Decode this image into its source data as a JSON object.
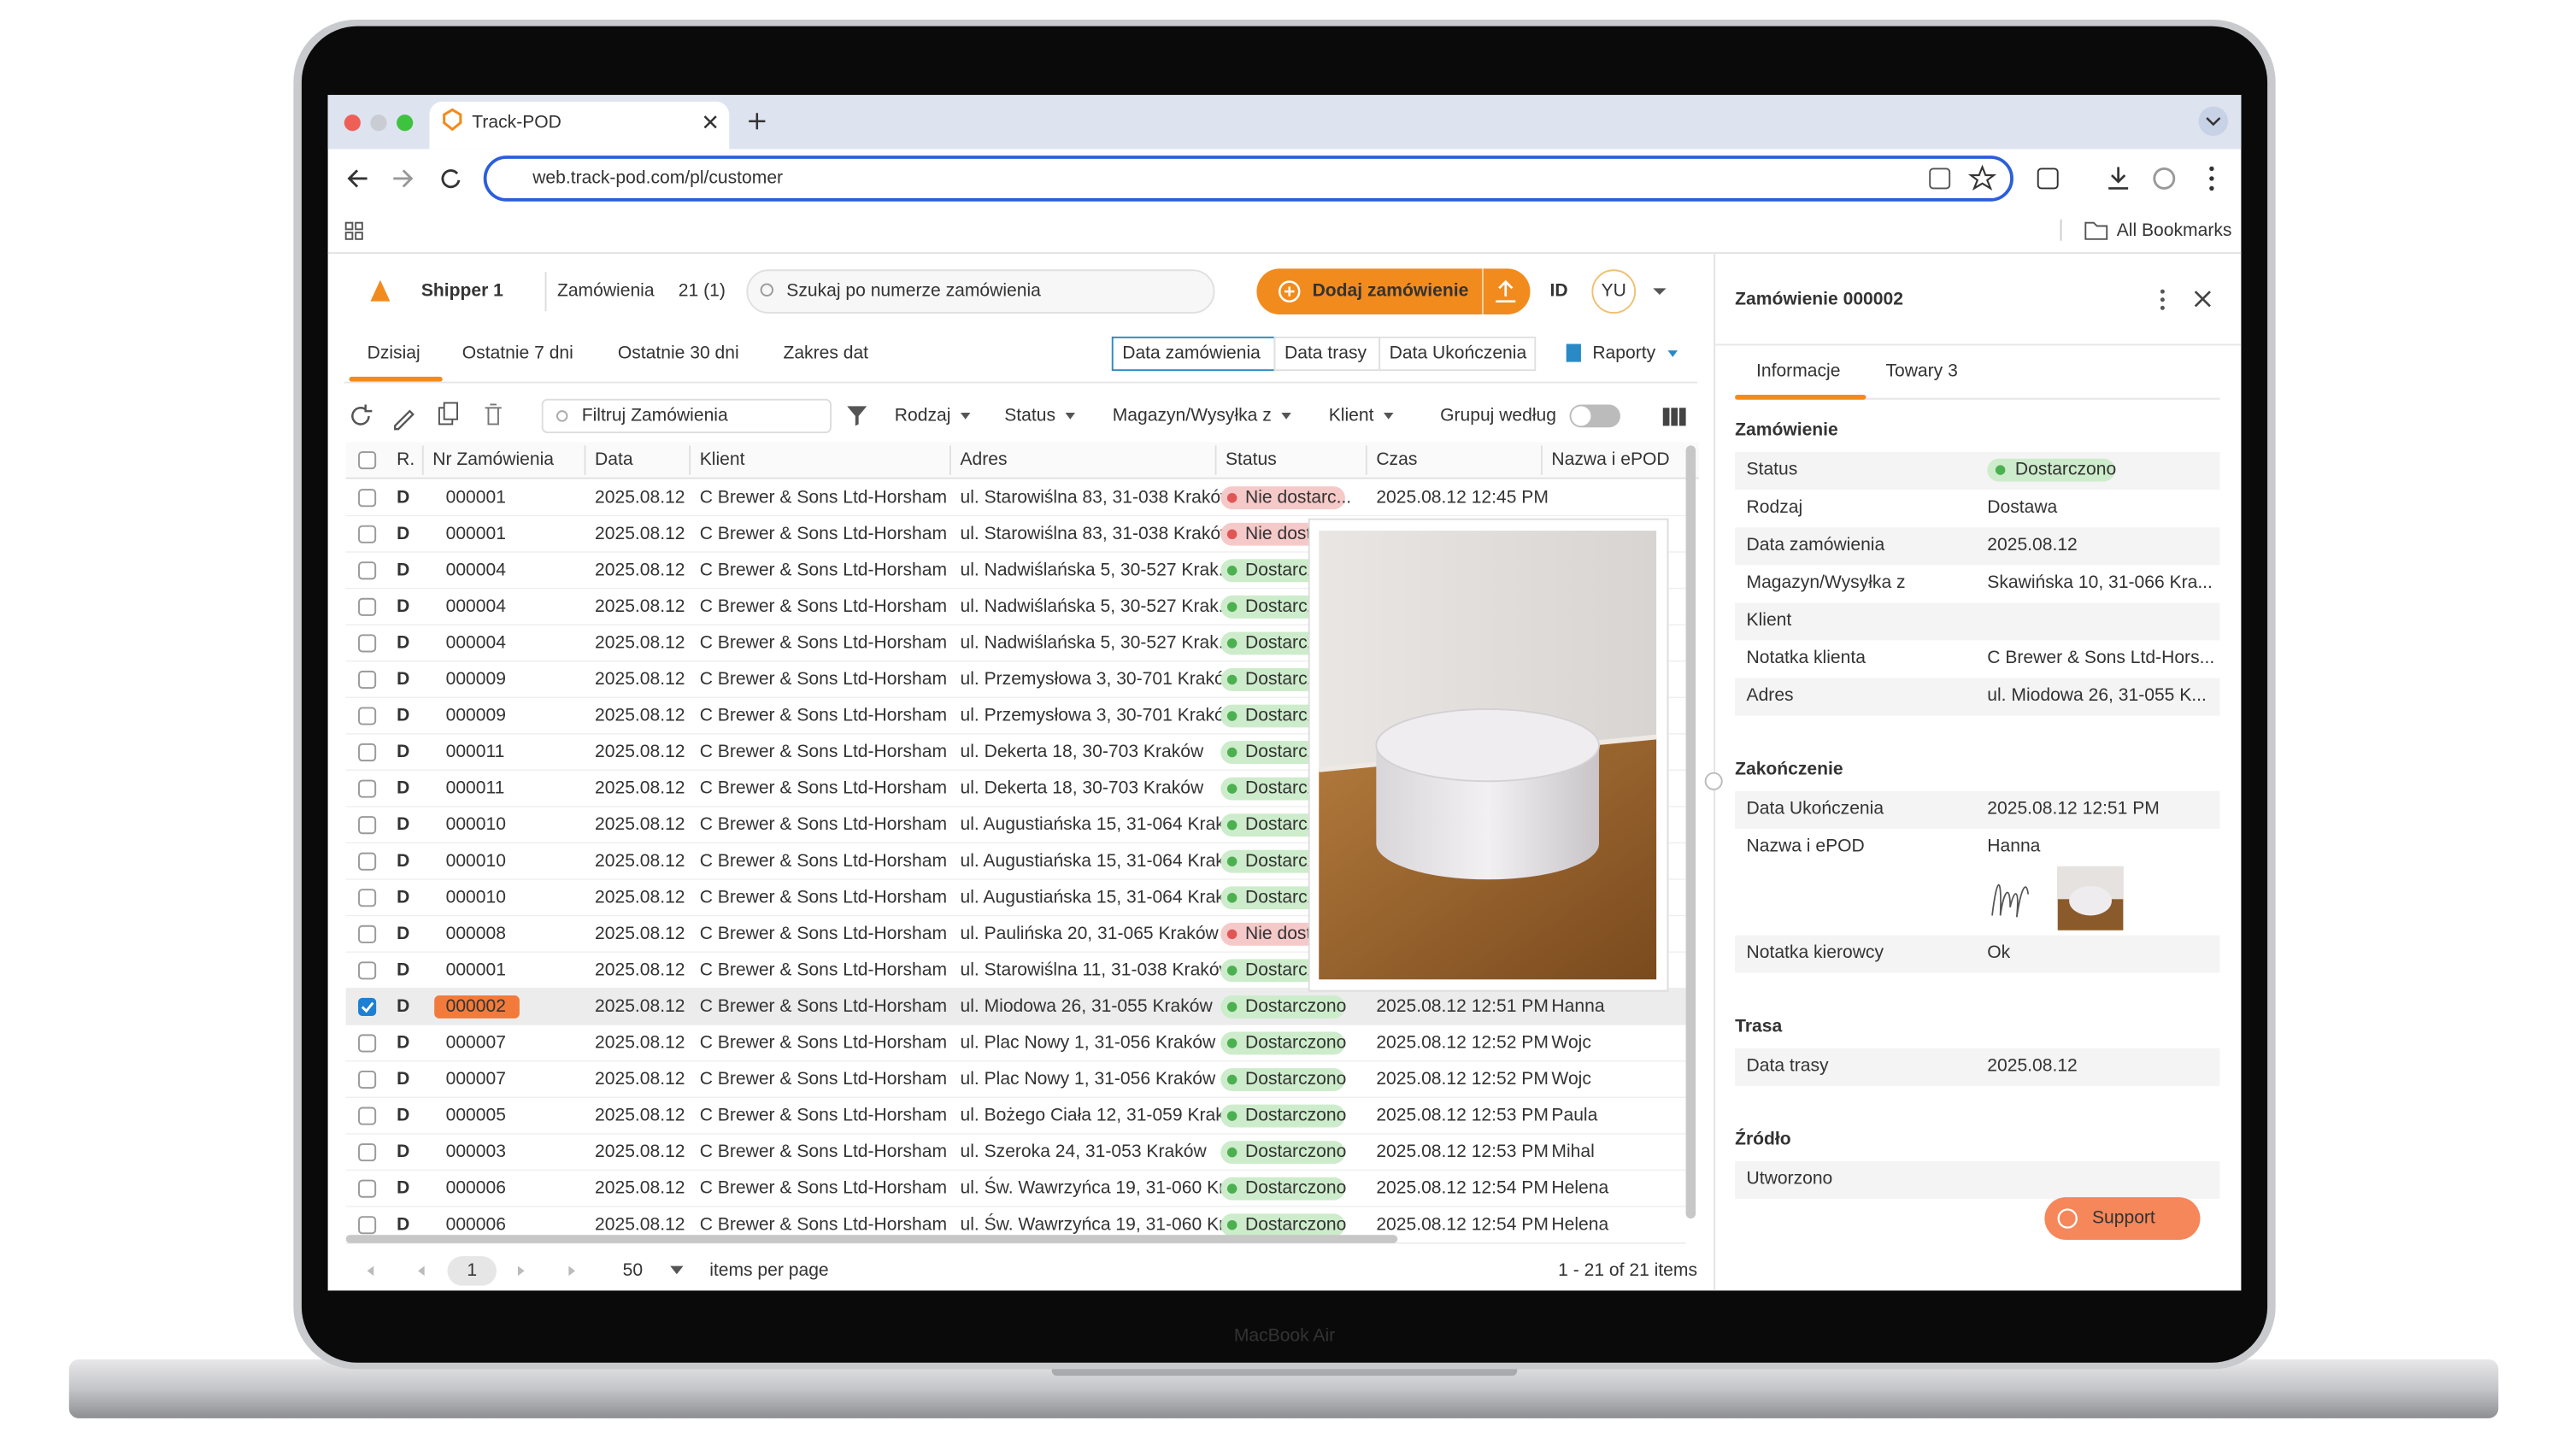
{
  "browser": {
    "tab_title": "Track-POD",
    "url": "web.track-pod.com/pl/customer",
    "bookmarks": "All Bookmarks"
  },
  "header": {
    "company": "Shipper 1",
    "orders_label": "Zamówienia",
    "orders_count": "21 (1)",
    "search_placeholder": "Szukaj po numerze zamówienia",
    "add_button": "Dodaj zamówienie",
    "id_label": "ID",
    "avatar": "YU"
  },
  "date_tabs": [
    "Dzisiaj",
    "Ostatnie 7 dni",
    "Ostatnie 30 dni",
    "Zakres dat"
  ],
  "date_types": [
    "Data zamówienia",
    "Data trasy",
    "Data Ukończenia"
  ],
  "reports": "Raporty",
  "toolbar": {
    "filter_placeholder": "Filtruj Zamówienia",
    "filters": [
      "Rodzaj",
      "Status",
      "Magazyn/Wysyłka z",
      "Klient"
    ],
    "group_by": "Grupuj według"
  },
  "table": {
    "columns": [
      "R.",
      "Nr Zamówienia",
      "Data",
      "Klient",
      "Adres",
      "Status",
      "Czas",
      "Nazwa i ePOD"
    ],
    "rows": [
      [
        "D",
        "000001",
        "2025.08.12",
        "C Brewer & Sons Ltd-Horsham",
        "ul. Starowiślna 83, 31-038 Kraków",
        "Nie dostarc...",
        "2025.08.12 12:45 PM",
        null
      ],
      [
        "D",
        "000001",
        "2025.08.12",
        "C Brewer & Sons Ltd-Horsham",
        "ul. Starowiślna 83, 31-038 Kraków",
        "Nie dostarczono",
        null,
        null
      ],
      [
        "D",
        "000004",
        "2025.08.12",
        "C Brewer & Sons Ltd-Horsham",
        "ul. Nadwiślańska 5, 30-527 Krak...",
        "Dostarczono",
        null,
        null
      ],
      [
        "D",
        "000004",
        "2025.08.12",
        "C Brewer & Sons Ltd-Horsham",
        "ul. Nadwiślańska 5, 30-527 Krak...",
        "Dostarczono",
        null,
        null
      ],
      [
        "D",
        "000004",
        "2025.08.12",
        "C Brewer & Sons Ltd-Horsham",
        "ul. Nadwiślańska 5, 30-527 Krak...",
        "Dostarczono",
        null,
        null
      ],
      [
        "D",
        "000009",
        "2025.08.12",
        "C Brewer & Sons Ltd-Horsham",
        "ul. Przemysłowa 3, 30-701 Kraków",
        "Dostarczono",
        null,
        null
      ],
      [
        "D",
        "000009",
        "2025.08.12",
        "C Brewer & Sons Ltd-Horsham",
        "ul. Przemysłowa 3, 30-701 Kraków",
        "Dostarczono",
        null,
        null
      ],
      [
        "D",
        "000011",
        "2025.08.12",
        "C Brewer & Sons Ltd-Horsham",
        "ul. Dekerta 18, 30-703 Kraków",
        "Dostarczono",
        null,
        null
      ],
      [
        "D",
        "000011",
        "2025.08.12",
        "C Brewer & Sons Ltd-Horsham",
        "ul. Dekerta 18, 30-703 Kraków",
        "Dostarczono",
        null,
        null
      ],
      [
        "D",
        "000010",
        "2025.08.12",
        "C Brewer & Sons Ltd-Horsham",
        "ul. Augustiańska 15, 31-064 Krak...",
        "Dostarczono",
        null,
        null
      ],
      [
        "D",
        "000010",
        "2025.08.12",
        "C Brewer & Sons Ltd-Horsham",
        "ul. Augustiańska 15, 31-064 Krak...",
        "Dostarczono",
        null,
        null
      ],
      [
        "D",
        "000010",
        "2025.08.12",
        "C Brewer & Sons Ltd-Horsham",
        "ul. Augustiańska 15, 31-064 Krak...",
        "Dostarczono",
        null,
        null
      ],
      [
        "D",
        "000008",
        "2025.08.12",
        "C Brewer & Sons Ltd-Horsham",
        "ul. Paulińska 20, 31-065 Kraków",
        "Nie dostarczono",
        null,
        null
      ],
      [
        "D",
        "000001",
        "2025.08.12",
        "C Brewer & Sons Ltd-Horsham",
        "ul. Starowiślna 11, 31-038 Kraków",
        "Dostarczono",
        null,
        null
      ],
      [
        "D",
        "000002",
        "2025.08.12",
        "C Brewer & Sons Ltd-Horsham",
        "ul. Miodowa 26, 31-055 Kraków",
        "Dostarczono",
        "2025.08.12 12:51 PM",
        "Hanna"
      ],
      [
        "D",
        "000007",
        "2025.08.12",
        "C Brewer & Sons Ltd-Horsham",
        "ul. Plac Nowy 1, 31-056 Kraków",
        "Dostarczono",
        "2025.08.12 12:52 PM",
        "Wojc"
      ],
      [
        "D",
        "000007",
        "2025.08.12",
        "C Brewer & Sons Ltd-Horsham",
        "ul. Plac Nowy 1, 31-056 Kraków",
        "Dostarczono",
        "2025.08.12 12:52 PM",
        "Wojc"
      ],
      [
        "D",
        "000005",
        "2025.08.12",
        "C Brewer & Sons Ltd-Horsham",
        "ul. Bożego Ciała 12, 31-059 Krak...",
        "Dostarczono",
        "2025.08.12 12:53 PM",
        "Paula"
      ],
      [
        "D",
        "000003",
        "2025.08.12",
        "C Brewer & Sons Ltd-Horsham",
        "ul. Szeroka 24, 31-053 Kraków",
        "Dostarczono",
        "2025.08.12 12:53 PM",
        "Mihal"
      ],
      [
        "D",
        "000006",
        "2025.08.12",
        "C Brewer & Sons Ltd-Horsham",
        "ul. Św. Wawrzyńca 19, 31-060 Kr...",
        "Dostarczono",
        "2025.08.12 12:54 PM",
        "Helena"
      ],
      [
        "D",
        "000006",
        "2025.08.12",
        "C Brewer & Sons Ltd-Horsham",
        "ul. Św. Wawrzyńca 19, 31-060 Kr...",
        "Dostarczono",
        "2025.08.12 12:54 PM",
        "Helena"
      ]
    ]
  },
  "pager": {
    "page": "1",
    "per_page": "50",
    "per_page_label": "items per page",
    "range": "1 - 21 of 21 items"
  },
  "panel": {
    "title": "Zamówienie 000002",
    "tabs": [
      "Informacje",
      "Towary 3"
    ],
    "sections": [
      {
        "title": "Zamówienie",
        "rows": [
          [
            "Status",
            "Dostarczono"
          ],
          [
            "Rodzaj",
            "Dostawa"
          ],
          [
            "Data zamówienia",
            "2025.08.12"
          ],
          [
            "Magazyn/Wysyłka z",
            "Skawińska 10, 31-066 Kra..."
          ],
          [
            "Klient",
            null
          ],
          [
            "Notatka klienta",
            "C Brewer & Sons Ltd-Hors..."
          ],
          [
            "Adres",
            "ul. Miodowa 26, 31-055 K..."
          ]
        ]
      },
      {
        "title": "Zakończenie",
        "rows": [
          [
            "Data Ukończenia",
            "2025.08.12 12:51 PM"
          ],
          [
            "Nazwa i ePOD",
            "Hanna"
          ],
          [
            "Notatka kierowcy",
            "Ok"
          ]
        ]
      },
      {
        "title": "Trasa",
        "rows": [
          [
            "Data trasy",
            "2025.08.12"
          ]
        ]
      },
      {
        "title": "Źródło",
        "rows": [
          [
            "Utworzono",
            null
          ]
        ]
      }
    ],
    "support": "Support"
  },
  "device_label": "MacBook Air"
}
